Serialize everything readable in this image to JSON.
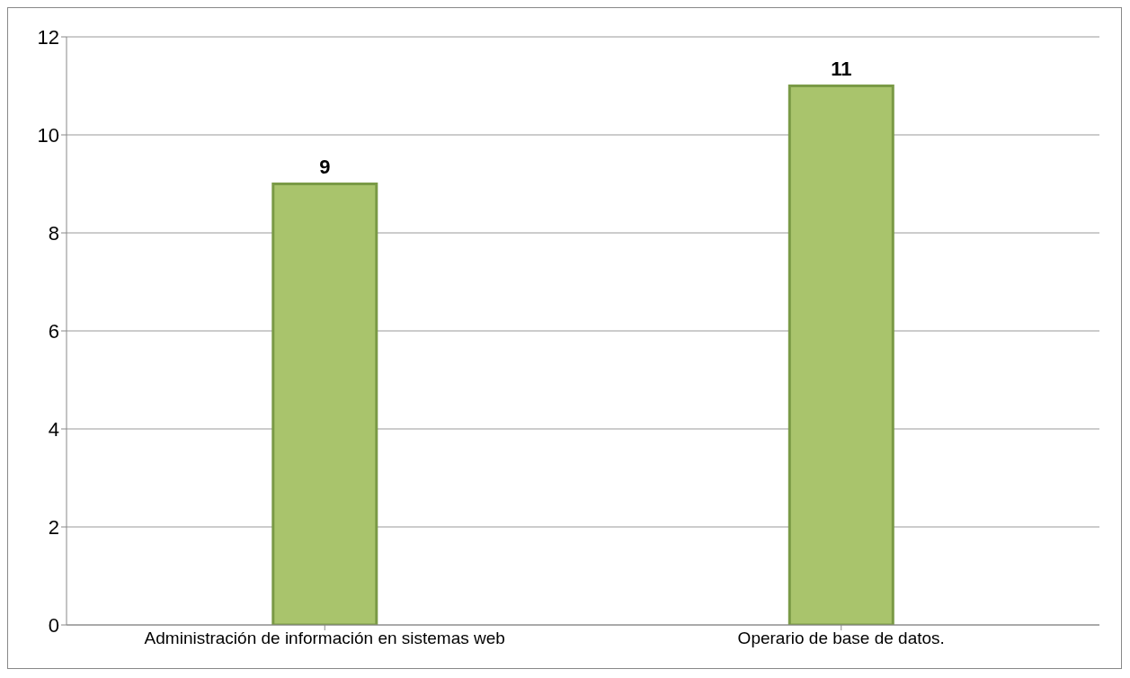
{
  "chart_data": {
    "type": "bar",
    "categories": [
      "Administración de información en sistemas web",
      "Operario de base de datos."
    ],
    "values": [
      9,
      11
    ],
    "color": "#a9c46c",
    "ylim": [
      0,
      12
    ],
    "yticks": [
      0,
      2,
      4,
      6,
      8,
      10,
      12
    ],
    "grid": "y",
    "data_labels": true
  }
}
